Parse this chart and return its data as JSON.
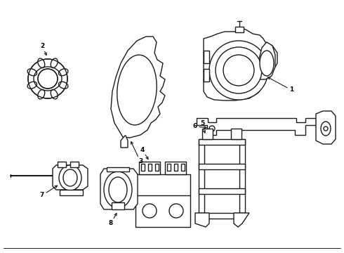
{
  "background_color": "#ffffff",
  "line_color": "#1a1a1a",
  "line_width": 1.0,
  "fig_width": 4.9,
  "fig_height": 3.6,
  "dpi": 100
}
